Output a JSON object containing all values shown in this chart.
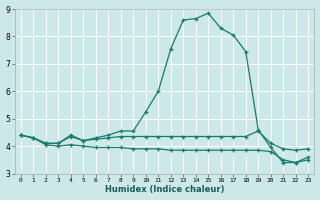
{
  "title": "",
  "xlabel": "Humidex (Indice chaleur)",
  "background_color": "#cce8e8",
  "grid_color": "#ffffff",
  "line_color": "#1a7a6e",
  "x": [
    0,
    1,
    2,
    3,
    4,
    5,
    6,
    7,
    8,
    9,
    10,
    11,
    12,
    13,
    14,
    15,
    16,
    17,
    18,
    19,
    20,
    21,
    22,
    23
  ],
  "line1": [
    4.4,
    4.3,
    4.1,
    4.1,
    4.4,
    4.2,
    4.3,
    4.4,
    4.55,
    4.55,
    5.25,
    6.0,
    7.55,
    8.6,
    8.65,
    8.85,
    8.3,
    8.05,
    7.45,
    4.6,
    3.95,
    3.4,
    3.4,
    3.6
  ],
  "line2": [
    4.4,
    4.3,
    4.1,
    4.1,
    4.35,
    4.2,
    4.25,
    4.3,
    4.35,
    4.35,
    4.35,
    4.35,
    4.35,
    4.35,
    4.35,
    4.35,
    4.35,
    4.35,
    4.35,
    4.55,
    4.1,
    3.9,
    3.85,
    3.9
  ],
  "line3": [
    4.4,
    4.3,
    4.05,
    4.0,
    4.05,
    4.0,
    3.95,
    3.95,
    3.95,
    3.9,
    3.9,
    3.9,
    3.85,
    3.85,
    3.85,
    3.85,
    3.85,
    3.85,
    3.85,
    3.85,
    3.8,
    3.5,
    3.4,
    3.5
  ],
  "ylim": [
    3.0,
    9.0
  ],
  "xlim": [
    -0.5,
    23.5
  ],
  "yticks": [
    3,
    4,
    5,
    6,
    7,
    8,
    9
  ],
  "xticks": [
    0,
    1,
    2,
    3,
    4,
    5,
    6,
    7,
    8,
    9,
    10,
    11,
    12,
    13,
    14,
    15,
    16,
    17,
    18,
    19,
    20,
    21,
    22,
    23
  ]
}
